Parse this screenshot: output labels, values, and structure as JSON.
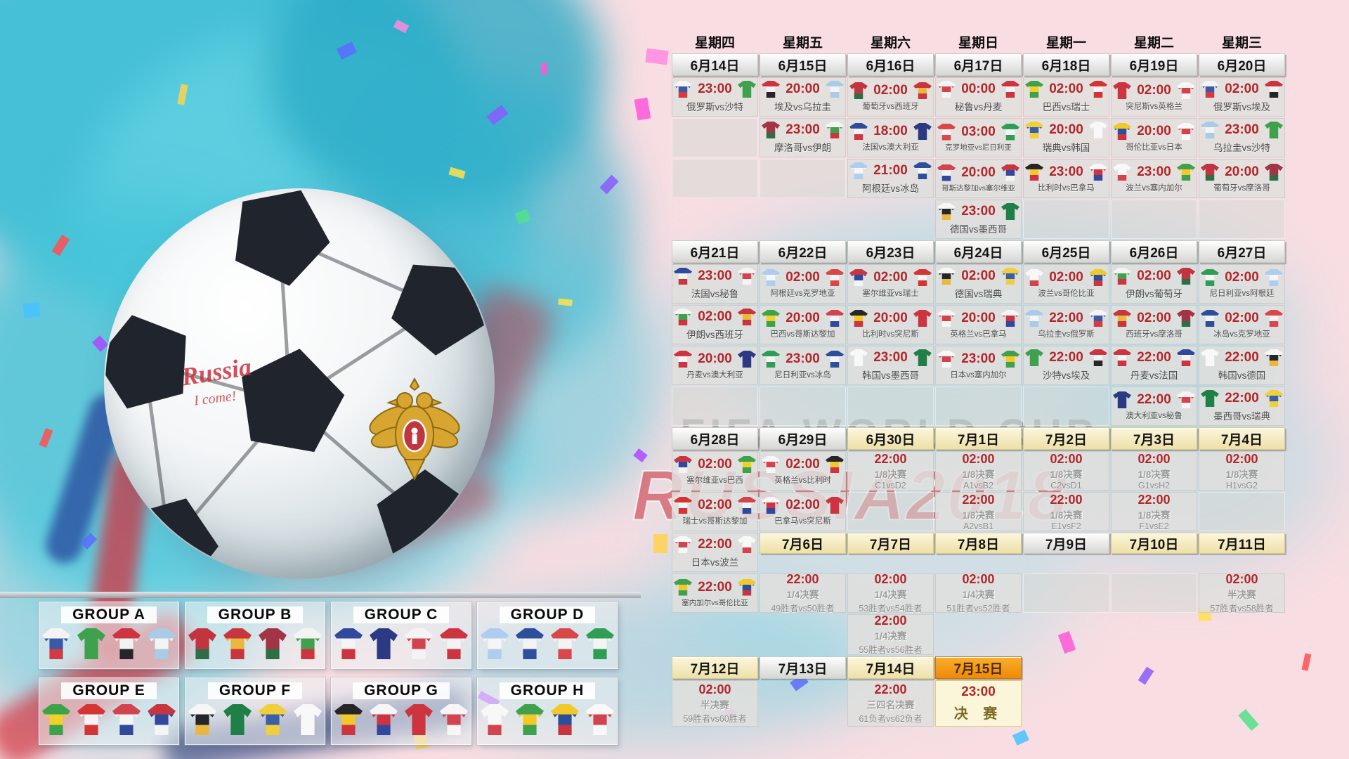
{
  "watermark": {
    "line1": "FIFA WORLD CUP",
    "line2": "RUSSIA2018"
  },
  "ball_graffiti": {
    "line1": "Russia",
    "line2": "I come!"
  },
  "palette": {
    "background_pink": "#f8dee2",
    "splash_cyan": "#45c3d8",
    "time_red": "#b3262a",
    "final_orange": "#f59f1d"
  },
  "calendar": {
    "weekdays": [
      "星期四",
      "星期五",
      "星期六",
      "星期日",
      "星期一",
      "星期二",
      "星期三"
    ],
    "week1": {
      "dates": [
        {
          "label": "6月14日",
          "style": "june"
        },
        {
          "label": "6月15日",
          "style": "june"
        },
        {
          "label": "6月16日",
          "style": "june"
        },
        {
          "label": "6月17日",
          "style": "june"
        },
        {
          "label": "6月18日",
          "style": "june"
        },
        {
          "label": "6月19日",
          "style": "june"
        },
        {
          "label": "6月20日",
          "style": "june"
        }
      ],
      "rows": [
        [
          {
            "type": "match",
            "time": "23:00",
            "label": "俄罗斯vs沙特",
            "home": "俄罗斯",
            "away": "沙特"
          },
          {
            "type": "match",
            "time": "20:00",
            "label": "埃及vs乌拉圭",
            "home": "埃及",
            "away": "乌拉圭"
          },
          {
            "type": "match",
            "time": "02:00",
            "label": "葡萄牙vs西班牙",
            "home": "葡萄牙",
            "away": "西班牙"
          },
          {
            "type": "match",
            "time": "00:00",
            "label": "秘鲁vs丹麦",
            "home": "秘鲁",
            "away": "丹麦"
          },
          {
            "type": "match",
            "time": "02:00",
            "label": "巴西vs瑞士",
            "home": "巴西",
            "away": "瑞士"
          },
          {
            "type": "match",
            "time": "02:00",
            "label": "突尼斯vs英格兰",
            "home": "突尼斯",
            "away": "英格兰"
          },
          {
            "type": "match",
            "time": "02:00",
            "label": "俄罗斯vs埃及",
            "home": "俄罗斯",
            "away": "埃及"
          }
        ],
        [
          {
            "type": "empty"
          },
          {
            "type": "match",
            "time": "23:00",
            "label": "摩洛哥vs伊朗",
            "home": "摩洛哥",
            "away": "伊朗"
          },
          {
            "type": "match",
            "time": "18:00",
            "label": "法国vs澳大利亚",
            "home": "法国",
            "away": "澳大利亚"
          },
          {
            "type": "match",
            "time": "03:00",
            "label": "克罗地亚vs尼日利亚",
            "home": "克罗地亚",
            "away": "尼日利亚"
          },
          {
            "type": "match",
            "time": "20:00",
            "label": "瑞典vs韩国",
            "home": "瑞典",
            "away": "韩国"
          },
          {
            "type": "match",
            "time": "20:00",
            "label": "哥伦比亚vs日本",
            "home": "哥伦比亚",
            "away": "日本"
          },
          {
            "type": "match",
            "time": "23:00",
            "label": "乌拉圭vs沙特",
            "home": "乌拉圭",
            "away": "沙特"
          }
        ],
        [
          {
            "type": "empty"
          },
          {
            "type": "empty"
          },
          {
            "type": "match",
            "time": "21:00",
            "label": "阿根廷vs冰岛",
            "home": "阿根廷",
            "away": "冰岛"
          },
          {
            "type": "match",
            "time": "20:00",
            "label": "哥斯达黎加vs塞尔维亚",
            "home": "哥斯达黎加",
            "away": "塞尔维亚"
          },
          {
            "type": "match",
            "time": "23:00",
            "label": "比利时vs巴拿马",
            "home": "比利时",
            "away": "巴拿马"
          },
          {
            "type": "match",
            "time": "23:00",
            "label": "波兰vs塞内加尔",
            "home": "波兰",
            "away": "塞内加尔"
          },
          {
            "type": "match",
            "time": "20:00",
            "label": "葡萄牙vs摩洛哥",
            "home": "葡萄牙",
            "away": "摩洛哥"
          }
        ],
        [
          null,
          null,
          null,
          {
            "type": "match",
            "time": "23:00",
            "label": "德国vs墨西哥",
            "home": "德国",
            "away": "墨西哥"
          },
          {
            "type": "empty"
          },
          {
            "type": "empty"
          },
          {
            "type": "empty"
          }
        ]
      ]
    },
    "week2": {
      "dates": [
        {
          "label": "6月21日",
          "style": "june"
        },
        {
          "label": "6月22日",
          "style": "june"
        },
        {
          "label": "6月23日",
          "style": "june"
        },
        {
          "label": "6月24日",
          "style": "june"
        },
        {
          "label": "6月25日",
          "style": "june"
        },
        {
          "label": "6月26日",
          "style": "june"
        },
        {
          "label": "6月27日",
          "style": "june"
        }
      ],
      "rows": [
        [
          {
            "type": "match",
            "time": "23:00",
            "label": "法国vs秘鲁",
            "home": "法国",
            "away": "秘鲁"
          },
          {
            "type": "match",
            "time": "02:00",
            "label": "阿根廷vs克罗地亚",
            "home": "阿根廷",
            "away": "克罗地亚"
          },
          {
            "type": "match",
            "time": "02:00",
            "label": "塞尔维亚vs瑞士",
            "home": "塞尔维亚",
            "away": "瑞士"
          },
          {
            "type": "match",
            "time": "02:00",
            "label": "德国vs瑞典",
            "home": "德国",
            "away": "瑞典"
          },
          {
            "type": "match",
            "time": "02:00",
            "label": "波兰vs哥伦比亚",
            "home": "波兰",
            "away": "哥伦比亚"
          },
          {
            "type": "match",
            "time": "02:00",
            "label": "伊朗vs葡萄牙",
            "home": "伊朗",
            "away": "葡萄牙"
          },
          {
            "type": "match",
            "time": "02:00",
            "label": "尼日利亚vs阿根廷",
            "home": "尼日利亚",
            "away": "阿根廷"
          }
        ],
        [
          {
            "type": "match",
            "time": "02:00",
            "label": "伊朗vs西班牙",
            "home": "伊朗",
            "away": "西班牙"
          },
          {
            "type": "match",
            "time": "20:00",
            "label": "巴西vs哥斯达黎加",
            "home": "巴西",
            "away": "哥斯达黎加"
          },
          {
            "type": "match",
            "time": "20:00",
            "label": "比利时vs突尼斯",
            "home": "比利时",
            "away": "突尼斯"
          },
          {
            "type": "match",
            "time": "20:00",
            "label": "英格兰vs巴拿马",
            "home": "英格兰",
            "away": "巴拿马"
          },
          {
            "type": "match",
            "time": "22:00",
            "label": "乌拉圭vs俄罗斯",
            "home": "乌拉圭",
            "away": "俄罗斯"
          },
          {
            "type": "match",
            "time": "02:00",
            "label": "西班牙vs摩洛哥",
            "home": "西班牙",
            "away": "摩洛哥"
          },
          {
            "type": "match",
            "time": "02:00",
            "label": "冰岛vs克罗地亚",
            "home": "冰岛",
            "away": "克罗地亚"
          }
        ],
        [
          {
            "type": "match",
            "time": "20:00",
            "label": "丹麦vs澳大利亚",
            "home": "丹麦",
            "away": "澳大利亚"
          },
          {
            "type": "match",
            "time": "23:00",
            "label": "尼日利亚vs冰岛",
            "home": "尼日利亚",
            "away": "冰岛"
          },
          {
            "type": "match",
            "time": "23:00",
            "label": "韩国vs墨西哥",
            "home": "韩国",
            "away": "墨西哥"
          },
          {
            "type": "match",
            "time": "23:00",
            "label": "日本vs塞内加尔",
            "home": "日本",
            "away": "塞内加尔"
          },
          {
            "type": "match",
            "time": "22:00",
            "label": "沙特vs埃及",
            "home": "沙特",
            "away": "埃及"
          },
          {
            "type": "match",
            "time": "22:00",
            "label": "丹麦vs法国",
            "home": "丹麦",
            "away": "法国"
          },
          {
            "type": "match",
            "time": "22:00",
            "label": "韩国vs德国",
            "home": "韩国",
            "away": "德国"
          }
        ],
        [
          {
            "type": "empty"
          },
          {
            "type": "empty"
          },
          {
            "type": "empty"
          },
          {
            "type": "empty"
          },
          {
            "type": "empty"
          },
          {
            "type": "match",
            "time": "22:00",
            "label": "澳大利亚vs秘鲁",
            "home": "澳大利亚",
            "away": "秘鲁"
          },
          {
            "type": "match",
            "time": "22:00",
            "label": "墨西哥vs瑞典",
            "home": "墨西哥",
            "away": "瑞典"
          }
        ]
      ]
    },
    "week3": {
      "dates": [
        {
          "label": "6月28日",
          "style": "june"
        },
        {
          "label": "6月29日",
          "style": "june"
        },
        {
          "label": "6月30日",
          "style": "july"
        },
        {
          "label": "7月1日",
          "style": "july"
        },
        {
          "label": "7月2日",
          "style": "july"
        },
        {
          "label": "7月3日",
          "style": "july"
        },
        {
          "label": "7月4日",
          "style": "july"
        }
      ],
      "rows": [
        [
          {
            "type": "match",
            "time": "02:00",
            "label": "塞尔维亚vs巴西",
            "home": "塞尔维亚",
            "away": "巴西"
          },
          {
            "type": "match",
            "time": "02:00",
            "label": "英格兰vs比利时",
            "home": "英格兰",
            "away": "比利时"
          },
          {
            "type": "ko",
            "time": "22:00",
            "stage": "1/8决赛",
            "teams": "C1vsD2"
          },
          {
            "type": "ko",
            "time": "02:00",
            "stage": "1/8决赛",
            "teams": "A1vsB2"
          },
          {
            "type": "ko",
            "time": "02:00",
            "stage": "1/8决赛",
            "teams": "C2vsD1"
          },
          {
            "type": "ko",
            "time": "02:00",
            "stage": "1/8决赛",
            "teams": "G1vsH2"
          },
          {
            "type": "ko",
            "time": "02:00",
            "stage": "1/8决赛",
            "teams": "H1vsG2"
          }
        ],
        [
          {
            "type": "match",
            "time": "02:00",
            "label": "瑞士vs哥斯达黎加",
            "home": "瑞士",
            "away": "哥斯达黎加"
          },
          {
            "type": "match",
            "time": "02:00",
            "label": "巴拿马vs突尼斯",
            "home": "巴拿马",
            "away": "突尼斯"
          },
          {
            "type": "empty"
          },
          {
            "type": "ko",
            "time": "22:00",
            "stage": "1/8决赛",
            "teams": "A2vsB1"
          },
          {
            "type": "ko",
            "time": "22:00",
            "stage": "1/8决赛",
            "teams": "E1vsF2"
          },
          {
            "type": "ko",
            "time": "22:00",
            "stage": "1/8决赛",
            "teams": "F1vsE2"
          },
          {
            "type": "empty"
          }
        ]
      ]
    },
    "week3_extra": [
      {
        "type": "match",
        "time": "22:00",
        "label": "日本vs波兰",
        "home": "日本",
        "away": "波兰"
      },
      {
        "type": "match",
        "time": "22:00",
        "label": "塞内加尔vs哥伦比亚",
        "home": "塞内加尔",
        "away": "哥伦比亚"
      }
    ],
    "week4": {
      "dates": [
        {
          "label": "7月6日",
          "style": "july"
        },
        {
          "label": "7月7日",
          "style": "july"
        },
        {
          "label": "7月8日",
          "style": "july"
        },
        {
          "label": "7月9日",
          "style": "june"
        },
        {
          "label": "7月10日",
          "style": "july"
        },
        {
          "label": "7月11日",
          "style": "july"
        }
      ],
      "row": [
        {
          "type": "ko",
          "time": "22:00",
          "stage": "1/4决赛",
          "teams": "49胜者vs50胜者"
        },
        {
          "type": "ko",
          "time": "02:00",
          "stage": "1/4决赛",
          "teams": "53胜者vs54胜者"
        },
        {
          "type": "ko",
          "time": "02:00",
          "stage": "1/4决赛",
          "teams": "51胜者vs52胜者"
        },
        {
          "type": "empty"
        },
        {
          "type": "empty"
        },
        {
          "type": "ko",
          "time": "02:00",
          "stage": "半决赛",
          "teams": "57胜者vs58胜者"
        }
      ],
      "extra": {
        "type": "ko",
        "time": "22:00",
        "stage": "1/4决赛",
        "teams": "55胜者vs56胜者"
      }
    },
    "week5": {
      "dates": [
        {
          "label": "7月12日",
          "style": "july"
        },
        {
          "label": "7月13日",
          "style": "june"
        },
        {
          "label": "7月14日",
          "style": "july"
        },
        {
          "label": "7月15日",
          "style": "orange"
        }
      ],
      "row": [
        {
          "type": "ko",
          "time": "02:00",
          "stage": "半决赛",
          "teams": "59胜者vs60胜者"
        },
        null,
        {
          "type": "ko",
          "time": "22:00",
          "stage": "三四名决赛",
          "teams": "61负者vs62负者"
        },
        {
          "type": "final",
          "time": "23:00",
          "label": "决 赛"
        }
      ]
    }
  },
  "groups": [
    {
      "label": "GROUP A",
      "teams": [
        "俄罗斯",
        "沙特",
        "埃及",
        "乌拉圭"
      ]
    },
    {
      "label": "GROUP B",
      "teams": [
        "葡萄牙",
        "西班牙",
        "摩洛哥",
        "伊朗"
      ]
    },
    {
      "label": "GROUP C",
      "teams": [
        "法国",
        "澳大利亚",
        "秘鲁",
        "丹麦"
      ]
    },
    {
      "label": "GROUP D",
      "teams": [
        "阿根廷",
        "冰岛",
        "克罗地亚",
        "尼日利亚"
      ]
    },
    {
      "label": "GROUP E",
      "teams": [
        "巴西",
        "瑞士",
        "哥斯达黎加",
        "塞尔维亚"
      ]
    },
    {
      "label": "GROUP F",
      "teams": [
        "德国",
        "墨西哥",
        "瑞典",
        "韩国"
      ]
    },
    {
      "label": "GROUP G",
      "teams": [
        "比利时",
        "巴拿马",
        "突尼斯",
        "英格兰"
      ]
    },
    {
      "label": "GROUP H",
      "teams": [
        "波兰",
        "塞内加尔",
        "哥伦比亚",
        "日本"
      ]
    }
  ],
  "jerseys": {
    "俄罗斯": [
      "#f4f4f4",
      "#3a5aa8",
      "#d23b44"
    ],
    "沙特": [
      "#3fa04d"
    ],
    "埃及": [
      "#ce3440",
      "#f2f2f2",
      "#26262a"
    ],
    "乌拉圭": [
      "#a9cbe8",
      "#f4f4f4",
      "#a9cbe8"
    ],
    "葡萄牙": [
      "#c13440",
      "#c13440",
      "#2e6e44"
    ],
    "西班牙": [
      "#c8353f",
      "#eab83e",
      "#c8353f"
    ],
    "秘鲁": [
      "#f4f4f4",
      "#d2434e",
      "#f4f4f4"
    ],
    "丹麦": [
      "#ce3440",
      "#f4f4f4",
      "#ce3440"
    ],
    "巴西": [
      "#3da24c",
      "#f2d028",
      "#3da24c"
    ],
    "瑞士": [
      "#d43434",
      "#f4f4f4",
      "#d43434"
    ],
    "突尼斯": [
      "#ce3440"
    ],
    "英格兰": [
      "#f6f6f6",
      "#d2434e",
      "#f6f6f6"
    ],
    "摩洛哥": [
      "#a23446",
      "#a23446",
      "#2e6e44"
    ],
    "伊朗": [
      "#f4f4f4",
      "#3fa04d",
      "#ce3440"
    ],
    "法国": [
      "#31499c",
      "#f4f4f4",
      "#ce3440"
    ],
    "澳大利亚": [
      "#2c3a84"
    ],
    "克罗地亚": [
      "#d84848",
      "#f4f4f4",
      "#d84848"
    ],
    "尼日利亚": [
      "#2f9e55",
      "#f4f4f4",
      "#2f9e55"
    ],
    "瑞典": [
      "#f0cf3a",
      "#3a5fa8",
      "#f0cf3a"
    ],
    "韩国": [
      "#f8f8f8"
    ],
    "哥伦比亚": [
      "#f2c928",
      "#2c4f9c",
      "#c8353f"
    ],
    "日本": [
      "#f8f8f8",
      "#d2434e",
      "#f8f8f8"
    ],
    "阿根廷": [
      "#aecdf0",
      "#f6f6f6",
      "#aecdf0"
    ],
    "冰岛": [
      "#2c4f9c",
      "#f4f4f4",
      "#2c4f9c"
    ],
    "哥斯达黎加": [
      "#d2434e",
      "#f4f4f4",
      "#31499c"
    ],
    "塞尔维亚": [
      "#c8353f",
      "#31499c",
      "#f4f4f4"
    ],
    "比利时": [
      "#26262a",
      "#f2c928",
      "#ce3440"
    ],
    "巴拿马": [
      "#f6f6f6",
      "#ce3440",
      "#31499c"
    ],
    "波兰": [
      "#f8f8f8",
      "#f8f8f8",
      "#d2434e"
    ],
    "塞内加尔": [
      "#3fa04d",
      "#f2c928",
      "#3fa04d"
    ],
    "德国": [
      "#f6f6f6",
      "#26262a",
      "#eab83e"
    ],
    "墨西哥": [
      "#1f7f46"
    ]
  }
}
